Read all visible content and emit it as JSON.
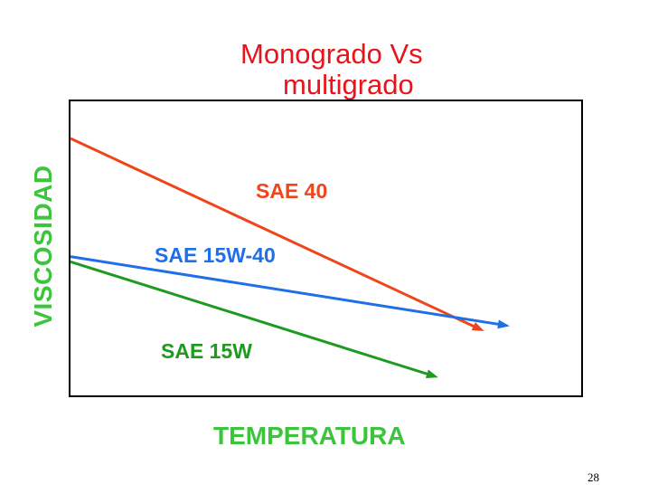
{
  "chart_data": {
    "type": "line",
    "title_line1": "Monogrado Vs",
    "title_line2": "multigrado",
    "xlabel": "TEMPERATURA",
    "ylabel": "VISCOSIDAD",
    "xlim": [
      0,
      100
    ],
    "ylim": [
      0,
      100
    ],
    "grid": false,
    "series": [
      {
        "name": "SAE 40",
        "color": "#f0441c",
        "x": [
          0,
          81
        ],
        "y": [
          100,
          25
        ]
      },
      {
        "name": "SAE 15W-40",
        "color": "#1f6fe8",
        "x": [
          0,
          86
        ],
        "y": [
          54,
          27
        ]
      },
      {
        "name": "SAE 15W",
        "color": "#1e9a1e",
        "x": [
          0,
          72
        ],
        "y": [
          52,
          7
        ]
      }
    ]
  },
  "page_number": "28"
}
